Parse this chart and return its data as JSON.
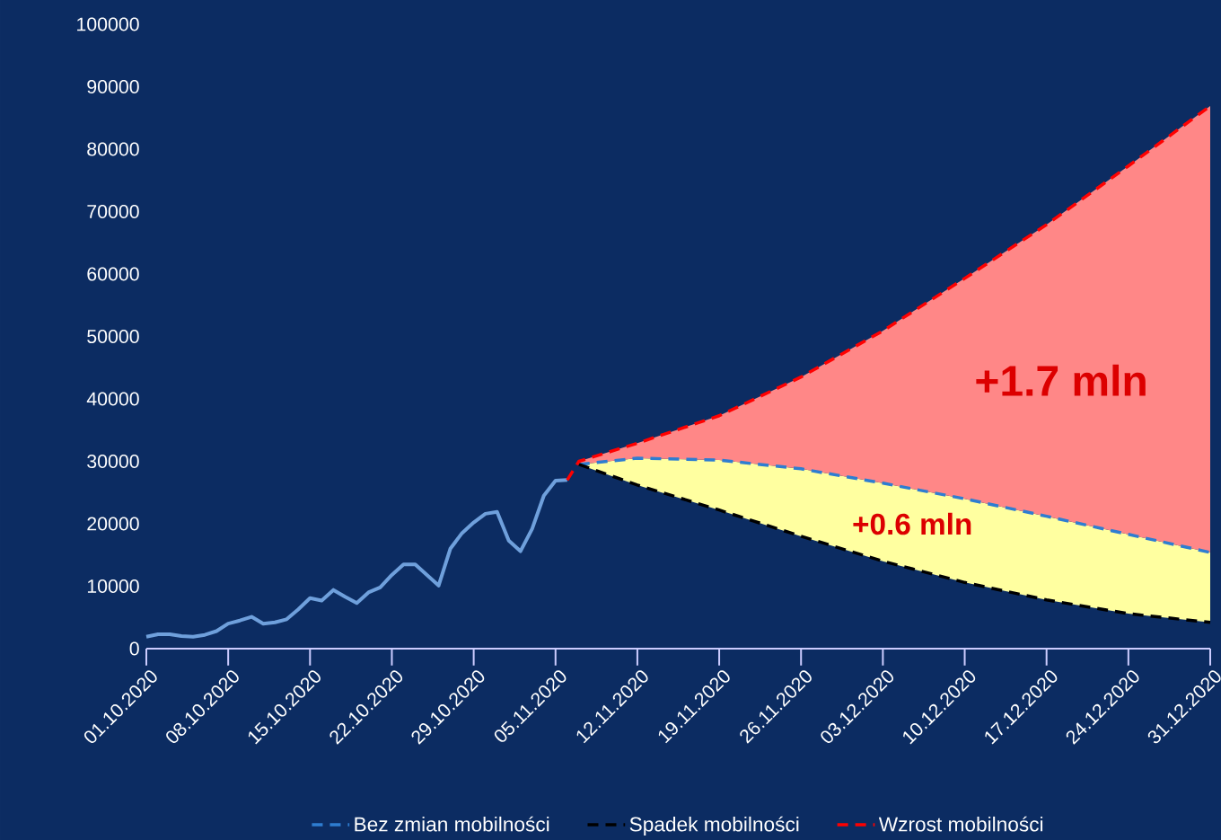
{
  "chart_data": {
    "type": "line",
    "annotations": [
      "+1.7 mln",
      "+0.6 mln"
    ],
    "xlim": [
      "2020-10-01",
      "2020-12-31"
    ],
    "ylim": [
      0,
      100000
    ],
    "yticks": [
      0,
      10000,
      20000,
      30000,
      40000,
      50000,
      60000,
      70000,
      80000,
      90000,
      100000
    ],
    "xticks": [
      {
        "value": "2020-10-01",
        "label": "01.10.2020"
      },
      {
        "value": "2020-10-08",
        "label": "08.10.2020"
      },
      {
        "value": "2020-10-15",
        "label": "15.10.2020"
      },
      {
        "value": "2020-10-22",
        "label": "22.10.2020"
      },
      {
        "value": "2020-10-29",
        "label": "29.10.2020"
      },
      {
        "value": "2020-11-05",
        "label": "05.11.2020"
      },
      {
        "value": "2020-11-12",
        "label": "12.11.2020"
      },
      {
        "value": "2020-11-19",
        "label": "19.11.2020"
      },
      {
        "value": "2020-11-26",
        "label": "26.11.2020"
      },
      {
        "value": "2020-12-03",
        "label": "03.12.2020"
      },
      {
        "value": "2020-12-10",
        "label": "10.12.2020"
      },
      {
        "value": "2020-12-17",
        "label": "17.12.2020"
      },
      {
        "value": "2020-12-24",
        "label": "24.12.2020"
      },
      {
        "value": "2020-12-31",
        "label": "31.12.2020"
      }
    ],
    "legend": "bottom",
    "series": [
      {
        "color": "#6fa0dc",
        "line_style": "solid",
        "x": [
          "2020-10-01",
          "2020-10-02",
          "2020-10-03",
          "2020-10-04",
          "2020-10-05",
          "2020-10-06",
          "2020-10-07",
          "2020-10-08",
          "2020-10-09",
          "2020-10-10",
          "2020-10-11",
          "2020-10-12",
          "2020-10-13",
          "2020-10-14",
          "2020-10-15",
          "2020-10-16",
          "2020-10-17",
          "2020-10-18",
          "2020-10-19",
          "2020-10-20",
          "2020-10-21",
          "2020-10-22",
          "2020-10-23",
          "2020-10-24",
          "2020-10-25",
          "2020-10-26",
          "2020-10-27",
          "2020-10-28",
          "2020-10-29",
          "2020-10-30",
          "2020-10-31",
          "2020-11-01",
          "2020-11-02",
          "2020-11-03",
          "2020-11-04",
          "2020-11-05",
          "2020-11-06"
        ],
        "values": [
          1900,
          2300,
          2300,
          2000,
          1900,
          2200,
          2800,
          4000,
          4500,
          5100,
          4000,
          4200,
          4700,
          6300,
          8100,
          7700,
          9400,
          8300,
          7300,
          9000,
          9800,
          11800,
          13500,
          13500,
          11800,
          10100,
          16000,
          18500,
          20200,
          21600,
          21900,
          17300,
          15600,
          19200,
          24500,
          26900,
          27000
        ]
      },
      {
        "name": "Bez zmian mobilności",
        "color": "#2e7dd1",
        "line_style": "dashed",
        "x": [
          "2020-11-07",
          "2020-11-12",
          "2020-11-19",
          "2020-11-26",
          "2020-12-03",
          "2020-12-10",
          "2020-12-17",
          "2020-12-24",
          "2020-12-31"
        ],
        "values": [
          29500,
          30500,
          30200,
          28800,
          26500,
          24000,
          21200,
          18300,
          15400
        ]
      },
      {
        "name": "Spadek mobilności",
        "color": "#000000",
        "line_style": "dashed",
        "x": [
          "2020-11-07",
          "2020-11-12",
          "2020-11-19",
          "2020-11-26",
          "2020-12-03",
          "2020-12-10",
          "2020-12-17",
          "2020-12-24",
          "2020-12-31"
        ],
        "values": [
          29500,
          26200,
          22200,
          18000,
          14000,
          10600,
          7800,
          5600,
          4200
        ],
        "lower": [
          29500,
          26200,
          22200,
          18000,
          14000,
          10600,
          7800,
          5600,
          4200
        ],
        "upper": [
          29500,
          30500,
          30200,
          28800,
          26500,
          24000,
          21200,
          18300,
          15400
        ]
      },
      {
        "name": "Wzrost mobilności",
        "color": "#ff0000",
        "line_style": "dashed",
        "x": [
          "2020-11-06",
          "2020-11-07",
          "2020-11-12",
          "2020-11-19",
          "2020-11-26",
          "2020-12-03",
          "2020-12-10",
          "2020-12-17",
          "2020-12-24",
          "2020-12-31"
        ],
        "values": [
          27000,
          30000,
          32900,
          37300,
          43500,
          50900,
          59300,
          67900,
          77300,
          86900
        ],
        "lower": [
          null,
          29500,
          30500,
          30200,
          28800,
          26500,
          24000,
          21200,
          18300,
          15400
        ],
        "upper": [
          null,
          30000,
          32900,
          37300,
          43500,
          50900,
          59300,
          67900,
          77300,
          86900
        ]
      }
    ]
  }
}
